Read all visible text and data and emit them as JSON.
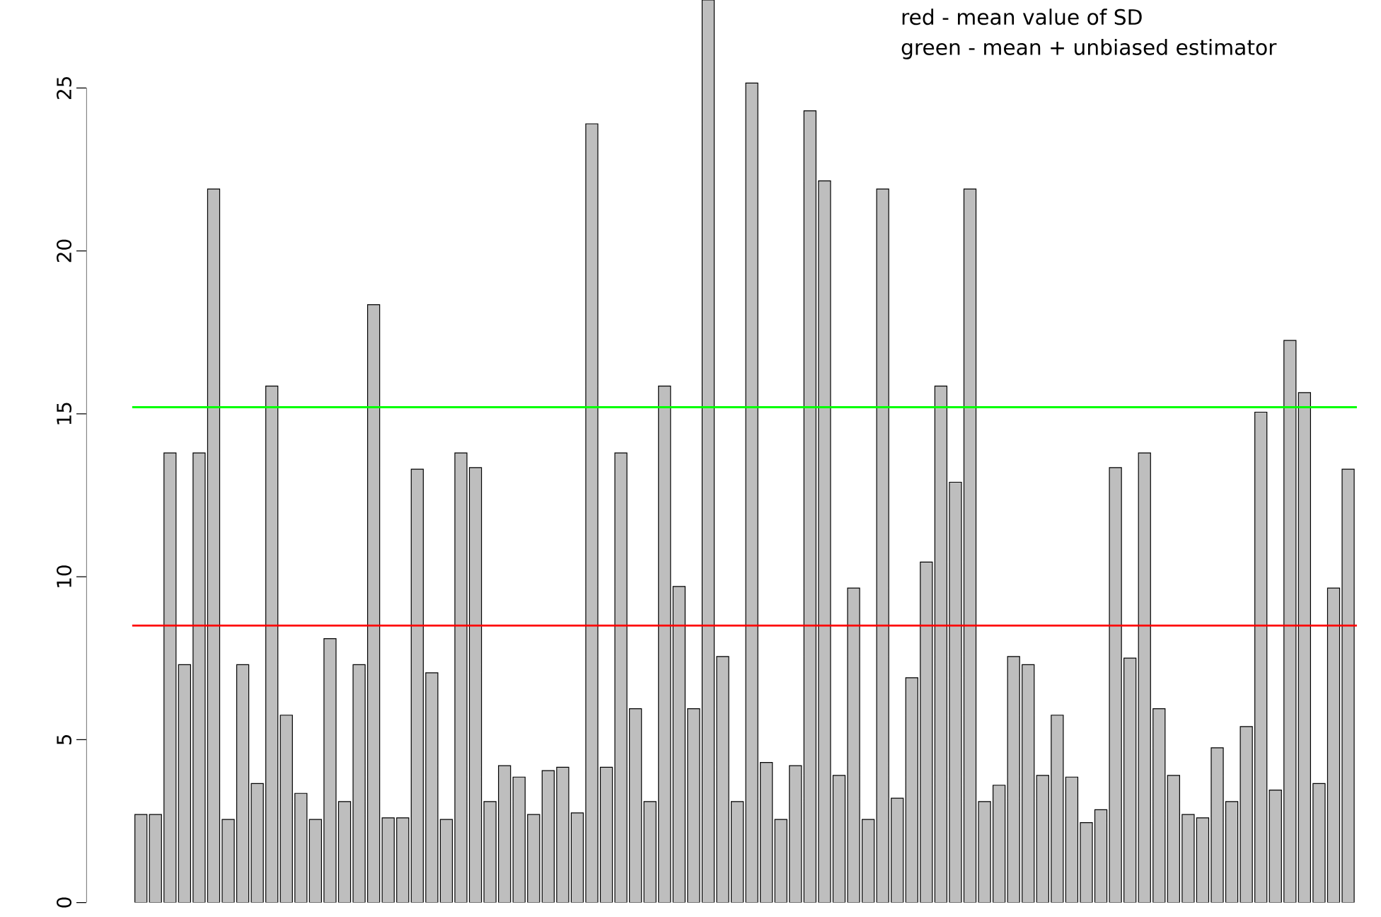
{
  "chart_data": {
    "type": "bar",
    "categories": [
      null,
      null,
      null,
      null,
      null,
      null,
      null,
      null,
      null,
      null,
      null,
      null,
      null,
      null,
      null,
      null,
      null,
      null,
      null,
      null,
      null,
      null,
      null,
      null,
      null,
      null,
      null,
      null,
      null,
      null,
      null,
      null,
      null,
      null,
      null,
      null,
      null,
      null,
      null,
      null,
      null,
      null,
      null,
      null,
      null,
      null,
      null,
      null,
      null,
      null,
      null,
      null,
      null,
      null,
      null,
      null,
      null,
      null,
      null,
      null,
      null,
      null,
      null,
      null,
      null,
      null,
      null,
      null,
      null,
      null,
      null,
      null,
      null,
      null,
      null,
      null,
      null,
      null,
      null,
      null,
      null,
      null,
      null,
      null
    ],
    "values": [
      2.7,
      2.7,
      13.8,
      7.3,
      13.8,
      21.9,
      2.55,
      7.3,
      3.65,
      15.85,
      5.75,
      3.35,
      2.55,
      8.1,
      3.1,
      7.3,
      18.35,
      2.6,
      2.6,
      13.3,
      7.05,
      2.55,
      13.8,
      13.35,
      3.1,
      4.2,
      3.85,
      2.7,
      4.05,
      4.15,
      2.75,
      23.9,
      4.15,
      13.8,
      5.95,
      3.1,
      15.85,
      9.7,
      5.95,
      27.7,
      7.55,
      3.1,
      25.15,
      4.3,
      2.55,
      4.2,
      24.3,
      22.15,
      3.9,
      9.65,
      2.55,
      21.9,
      3.2,
      6.9,
      10.45,
      15.85,
      12.9,
      21.9,
      3.1,
      3.6,
      7.55,
      7.3,
      3.9,
      5.75,
      3.85,
      2.45,
      2.85,
      13.35,
      7.5,
      13.8,
      5.95,
      3.9,
      2.7,
      2.6,
      4.75,
      3.1,
      5.4,
      15.05,
      3.45,
      17.25,
      15.65,
      3.65,
      9.65,
      13.3
    ],
    "color": "#bebebe",
    "ylim": [
      0,
      27.7
    ],
    "yticks": [
      0,
      5,
      10,
      15,
      20,
      25
    ],
    "tick_labels": "y",
    "ref_lines": [
      {
        "axis": "y",
        "value": 8.5,
        "color": "#ff0000"
      },
      {
        "axis": "y",
        "value": 15.2,
        "color": "#00ff00"
      }
    ],
    "annotations": [
      "red - mean value of SD",
      "green - mean + unbiased estimator"
    ]
  }
}
